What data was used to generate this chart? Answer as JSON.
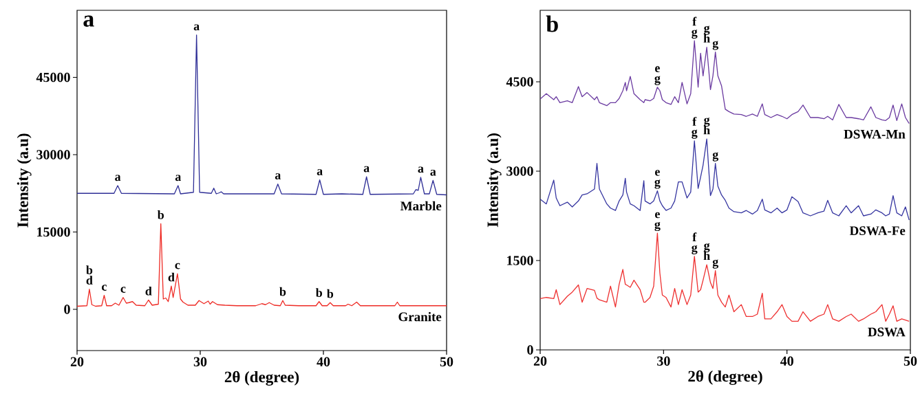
{
  "chart_data": [
    {
      "type": "line",
      "xlabel": "2θ (degree)",
      "ylabel": "Intensity (a.u)",
      "xlim": [
        20,
        50
      ],
      "ylim": [
        -8000,
        58000
      ],
      "xticks": [
        20,
        30,
        40,
        50
      ],
      "yticks": [
        0,
        15000,
        30000,
        45000
      ],
      "series": [
        {
          "name": "Marble",
          "color": "#2e2e96",
          "x": [
            20,
            23.0,
            23.3,
            23.6,
            27.9,
            28.2,
            28.4,
            29.45,
            29.7,
            29.95,
            30.9,
            31.1,
            31.3,
            31.55,
            31.7,
            31.9,
            36.0,
            36.3,
            36.6,
            39.4,
            39.7,
            40.0,
            41.5,
            43.2,
            43.5,
            43.8,
            47.3,
            47.5,
            47.7,
            47.9,
            48.2,
            48.6,
            48.9,
            49.2,
            50
          ],
          "values": [
            22500,
            22500,
            24000,
            22500,
            22400,
            24000,
            22400,
            22700,
            53200,
            22700,
            22500,
            23500,
            22400,
            22600,
            22800,
            22400,
            22400,
            24300,
            22400,
            22300,
            25100,
            22300,
            22400,
            22300,
            25700,
            22300,
            22400,
            23200,
            23100,
            25600,
            22400,
            22400,
            25000,
            22300,
            22200
          ]
        },
        {
          "name": "Granite",
          "color": "#ee2a24",
          "x": [
            20,
            20.8,
            21.0,
            21.2,
            21.5,
            22.0,
            22.2,
            22.4,
            22.8,
            23.1,
            23.4,
            23.74,
            24.0,
            24.2,
            24.5,
            24.8,
            25.5,
            25.8,
            26.1,
            26.6,
            26.8,
            27.0,
            27.2,
            27.4,
            27.65,
            27.8,
            28.15,
            28.4,
            28.6,
            29.0,
            29.6,
            29.9,
            30.3,
            30.65,
            30.8,
            31.0,
            31.4,
            32.0,
            33.0,
            34.5,
            35.0,
            35.3,
            35.6,
            36.0,
            36.5,
            36.7,
            36.9,
            38.0,
            39.4,
            39.65,
            39.9,
            40.3,
            40.55,
            40.8,
            41.8,
            42.0,
            42.3,
            42.7,
            43.0,
            45.8,
            46.0,
            46.2,
            48,
            50
          ],
          "values": [
            600,
            700,
            3900,
            900,
            600,
            700,
            2700,
            700,
            700,
            1200,
            800,
            2300,
            1200,
            1300,
            1500,
            800,
            700,
            1800,
            800,
            1000,
            16600,
            2000,
            2200,
            1500,
            4500,
            2300,
            6900,
            2000,
            1400,
            800,
            800,
            1700,
            1100,
            1600,
            1000,
            1500,
            900,
            800,
            700,
            700,
            1100,
            900,
            1300,
            800,
            700,
            1700,
            800,
            700,
            700,
            1500,
            700,
            700,
            1300,
            700,
            700,
            1000,
            700,
            1400,
            700,
            700,
            1400,
            700,
            700,
            700
          ]
        }
      ],
      "annotations": [
        "a",
        {
          "text": "a",
          "x": 23.3,
          "y": 24000
        },
        {
          "text": "a",
          "x": 28.2,
          "y": 24000
        },
        {
          "text": "a",
          "x": 29.7,
          "y": 53200
        },
        {
          "text": "a",
          "x": 36.3,
          "y": 24300
        },
        {
          "text": "a",
          "x": 39.7,
          "y": 25100
        },
        {
          "text": "a",
          "x": 43.5,
          "y": 25700
        },
        {
          "text": "a",
          "x": 47.9,
          "y": 25600
        },
        {
          "text": "a",
          "x": 48.9,
          "y": 25000
        },
        {
          "text": "d",
          "x": 21.0,
          "y": 3900
        },
        {
          "text": "b",
          "x": 21.0,
          "y": 3900
        },
        {
          "text": "c",
          "x": 22.2,
          "y": 2700
        },
        {
          "text": "c",
          "x": 23.74,
          "y": 2300
        },
        {
          "text": "d",
          "x": 25.8,
          "y": 1800
        },
        {
          "text": "b",
          "x": 26.8,
          "y": 16600
        },
        {
          "text": "d",
          "x": 27.65,
          "y": 4500
        },
        {
          "text": "c",
          "x": 28.15,
          "y": 6900
        },
        {
          "text": "b",
          "x": 36.7,
          "y": 1700
        },
        {
          "text": "b",
          "x": 39.65,
          "y": 1500
        },
        {
          "text": "b",
          "x": 40.55,
          "y": 1300
        }
      ]
    },
    {
      "type": "line",
      "xlabel": "2θ (degree)",
      "ylabel": "Intensity (a.u)",
      "xlim": [
        20,
        50
      ],
      "ylim": [
        0,
        5700
      ],
      "xticks": [
        20,
        30,
        40,
        50
      ],
      "yticks": [
        0,
        1500,
        3000,
        4500
      ],
      "x": [
        20.0,
        20.5,
        21.1,
        21.3,
        21.6,
        22.2,
        22.6,
        23.1,
        23.4,
        23.8,
        24.4,
        24.6,
        24.8,
        25.4,
        25.7,
        26.1,
        26.4,
        26.7,
        26.9,
        27.0,
        27.3,
        27.6,
        28.1,
        28.4,
        28.5,
        28.9,
        29.2,
        29.5,
        29.7,
        29.9,
        30.2,
        30.6,
        30.9,
        31.2,
        31.5,
        31.9,
        32.2,
        32.5,
        32.8,
        33.0,
        33.2,
        33.5,
        33.8,
        34.0,
        34.2,
        34.4,
        34.7,
        35.0,
        35.3,
        35.7,
        36.3,
        36.7,
        37.2,
        37.6,
        38.0,
        38.2,
        38.7,
        39.2,
        39.6,
        40.0,
        40.4,
        40.9,
        41.3,
        41.9,
        42.5,
        43.0,
        43.3,
        43.7,
        44.2,
        44.8,
        45.2,
        45.8,
        46.2,
        46.8,
        47.2,
        47.7,
        48.0,
        48.3,
        48.6,
        48.9,
        49.3,
        49.6,
        49.9
      ],
      "series": [
        {
          "name": "DSWA-Mn",
          "color": "#6a3aa0",
          "values": [
            4210,
            4300,
            4200,
            4250,
            4150,
            4180,
            4150,
            4420,
            4250,
            4320,
            4200,
            4250,
            4150,
            4100,
            4150,
            4150,
            4220,
            4350,
            4490,
            4350,
            4590,
            4300,
            4200,
            4150,
            4200,
            4180,
            4220,
            4410,
            4350,
            4200,
            4150,
            4120,
            4250,
            4150,
            4490,
            4130,
            4300,
            5190,
            4410,
            4980,
            4600,
            5080,
            4370,
            4600,
            5000,
            4600,
            4430,
            4040,
            4000,
            3960,
            3950,
            3920,
            3960,
            3920,
            4130,
            3950,
            3900,
            3950,
            3920,
            3880,
            3950,
            4000,
            4110,
            3900,
            3900,
            3880,
            3920,
            3860,
            4120,
            3900,
            3900,
            3880,
            3860,
            4080,
            3900,
            3860,
            3850,
            3900,
            4110,
            3850,
            4130,
            3900,
            3800
          ]
        },
        {
          "name": "DSWA-Fe",
          "color": "#3535a0",
          "values": [
            2530,
            2450,
            2850,
            2550,
            2420,
            2480,
            2400,
            2500,
            2600,
            2620,
            2700,
            3130,
            2700,
            2450,
            2380,
            2340,
            2500,
            2600,
            2880,
            2650,
            2450,
            2420,
            2340,
            2840,
            2500,
            2450,
            2500,
            2670,
            2500,
            2420,
            2340,
            2380,
            2500,
            2820,
            2820,
            2550,
            2650,
            3510,
            2710,
            2900,
            3100,
            3540,
            2590,
            2700,
            3130,
            2750,
            2600,
            2510,
            2380,
            2320,
            2300,
            2340,
            2280,
            2340,
            2530,
            2350,
            2300,
            2380,
            2300,
            2350,
            2570,
            2490,
            2300,
            2250,
            2300,
            2330,
            2510,
            2300,
            2250,
            2420,
            2300,
            2420,
            2250,
            2280,
            2350,
            2300,
            2250,
            2280,
            2590,
            2300,
            2250,
            2400,
            2180
          ]
        },
        {
          "name": "DSWA",
          "color": "#ee3030",
          "values": [
            860,
            880,
            860,
            1010,
            760,
            900,
            970,
            1090,
            800,
            1030,
            1000,
            870,
            840,
            800,
            1070,
            720,
            1100,
            1350,
            1100,
            1090,
            1050,
            1170,
            1010,
            800,
            800,
            880,
            1070,
            1960,
            1290,
            920,
            880,
            720,
            1030,
            760,
            1010,
            760,
            920,
            1570,
            970,
            1010,
            1170,
            1430,
            1130,
            1030,
            1330,
            920,
            800,
            720,
            920,
            640,
            760,
            560,
            560,
            600,
            950,
            520,
            520,
            640,
            760,
            560,
            480,
            480,
            640,
            480,
            560,
            600,
            760,
            520,
            480,
            560,
            600,
            480,
            520,
            600,
            640,
            760,
            480,
            600,
            740,
            480,
            520,
            500,
            480
          ]
        }
      ],
      "annotations": [
        "b",
        {
          "text": "g",
          "x": 29.5,
          "y": 4410
        },
        {
          "text": "e",
          "x": 29.5,
          "y": 4410
        },
        {
          "text": "g",
          "x": 32.5,
          "y": 5190
        },
        {
          "text": "f",
          "x": 32.5,
          "y": 5190
        },
        {
          "text": "h",
          "x": 33.5,
          "y": 5080
        },
        {
          "text": "g",
          "x": 33.5,
          "y": 5080
        },
        {
          "text": "g",
          "x": 34.2,
          "y": 5000
        },
        {
          "text": "g",
          "x": 29.5,
          "y": 2670
        },
        {
          "text": "e",
          "x": 29.5,
          "y": 2670
        },
        {
          "text": "g",
          "x": 32.5,
          "y": 3510
        },
        {
          "text": "f",
          "x": 32.5,
          "y": 3510
        },
        {
          "text": "h",
          "x": 33.5,
          "y": 3540
        },
        {
          "text": "g",
          "x": 33.5,
          "y": 3540
        },
        {
          "text": "g",
          "x": 34.2,
          "y": 3130
        },
        {
          "text": "g",
          "x": 29.5,
          "y": 1960
        },
        {
          "text": "e",
          "x": 29.5,
          "y": 1960
        },
        {
          "text": "g",
          "x": 32.5,
          "y": 1570
        },
        {
          "text": "f",
          "x": 32.5,
          "y": 1570
        },
        {
          "text": "h",
          "x": 33.5,
          "y": 1430
        },
        {
          "text": "g",
          "x": 33.5,
          "y": 1430
        },
        {
          "text": "g",
          "x": 34.2,
          "y": 1330
        }
      ]
    }
  ]
}
